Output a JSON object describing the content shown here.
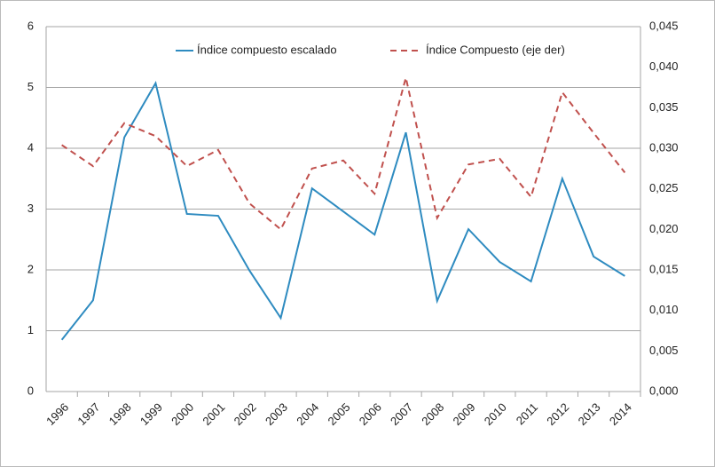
{
  "chart_data": {
    "type": "line",
    "categories": [
      "1996",
      "1997",
      "1998",
      "1999",
      "2000",
      "2001",
      "2002",
      "2003",
      "2004",
      "2005",
      "2006",
      "2007",
      "2008",
      "2009",
      "2010",
      "2011",
      "2012",
      "2013",
      "2014"
    ],
    "series": [
      {
        "name": "Índice compuesto escalado",
        "color": "#2e8bc0",
        "dash": false,
        "values": [
          0.85,
          1.5,
          4.18,
          5.07,
          2.92,
          2.89,
          1.99,
          1.21,
          3.34,
          2.96,
          2.58,
          4.26,
          1.49,
          2.67,
          2.13,
          1.81,
          3.5,
          2.22,
          1.9
        ]
      },
      {
        "name": "Índice Compuesto (eje der)",
        "color": "#c0504d",
        "dash": true,
        "axis": "y2",
        "values": [
          0.0304,
          0.0278,
          0.0331,
          0.0315,
          0.0278,
          0.0298,
          0.0232,
          0.02,
          0.0275,
          0.0285,
          0.0244,
          0.0387,
          0.0214,
          0.028,
          0.0287,
          0.024,
          0.0369,
          0.0319,
          0.027
        ]
      }
    ],
    "ylim": [
      0,
      6
    ],
    "yticks": [
      0,
      1,
      2,
      3,
      4,
      5,
      6
    ],
    "y2lim": [
      0,
      0.045
    ],
    "y2ticks": [
      {
        "value": 0,
        "label": "0,000"
      },
      {
        "value": 0.005,
        "label": "0,005"
      },
      {
        "value": 0.01,
        "label": "0,010"
      },
      {
        "value": 0.015,
        "label": "0,015"
      },
      {
        "value": 0.02,
        "label": "0,020"
      },
      {
        "value": 0.025,
        "label": "0,025"
      },
      {
        "value": 0.03,
        "label": "0,030"
      },
      {
        "value": 0.035,
        "label": "0,035"
      },
      {
        "value": 0.04,
        "label": "0,040"
      },
      {
        "value": 0.045,
        "label": "0,045"
      }
    ],
    "grid": true
  }
}
